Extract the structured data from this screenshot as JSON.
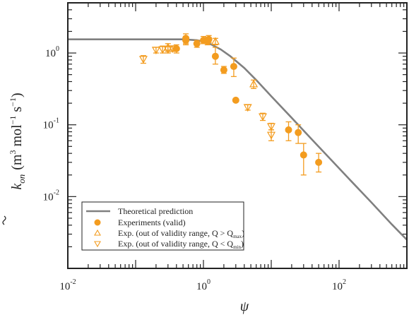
{
  "chart_data": {
    "type": "scatter",
    "xlabel": "ψ",
    "ylabel": {
      "prefix": "k",
      "subscript": "on",
      "units": "(m",
      "units_sup1": "3",
      "units_mid": " mol",
      "units_sup2": "−1",
      "units_mid2": " s",
      "units_sup3": "−1",
      "units_end": ")"
    },
    "xscale": "log",
    "yscale": "log",
    "xlim": [
      0.01,
      1000
    ],
    "ylim": [
      0.001,
      5
    ],
    "x_ticks": [
      {
        "value": 0.01,
        "base": "10",
        "exp": "-2"
      },
      {
        "value": 1,
        "base": "10",
        "exp": "0"
      },
      {
        "value": 100,
        "base": "10",
        "exp": "2"
      }
    ],
    "y_ticks": [
      {
        "value": 1,
        "base": "10",
        "exp": "0"
      },
      {
        "value": 0.1,
        "base": "10",
        "exp": "-1"
      },
      {
        "value": 0.01,
        "base": "10",
        "exp": "-2"
      }
    ],
    "grid": false,
    "legend_position": "bottom-left",
    "colors": {
      "theory": "#808080",
      "exp": "#f39c1f",
      "axis": "#222222"
    },
    "series": [
      {
        "name": "Theoretical prediction",
        "kind": "line",
        "x": [
          0.01,
          0.5,
          0.8,
          1.0,
          1.3,
          1.8,
          2.5,
          4,
          6,
          10,
          20,
          40,
          80,
          150,
          300,
          600,
          1000
        ],
        "y": [
          1.55,
          1.55,
          1.51,
          1.45,
          1.32,
          1.12,
          0.9,
          0.62,
          0.42,
          0.25,
          0.125,
          0.062,
          0.031,
          0.0165,
          0.0083,
          0.0041,
          0.0025
        ]
      },
      {
        "name": "Experiments (valid)",
        "kind": "circle",
        "x": [
          0.4,
          0.55,
          0.55,
          0.8,
          1.0,
          1.15,
          1.2,
          1.5,
          2.0,
          2.8,
          3.0,
          18,
          25,
          30,
          50
        ],
        "y": [
          1.15,
          1.6,
          1.5,
          1.35,
          1.5,
          1.45,
          1.55,
          0.9,
          0.58,
          0.65,
          0.22,
          0.085,
          0.078,
          0.038,
          0.03
        ],
        "err_low": [
          1.0,
          1.35,
          1.3,
          1.2,
          1.35,
          1.3,
          1.4,
          0.7,
          0.52,
          0.47,
          0.22,
          0.06,
          0.055,
          0.02,
          0.022
        ],
        "err_high": [
          1.3,
          1.85,
          1.7,
          1.5,
          1.7,
          1.65,
          1.75,
          1.2,
          0.65,
          0.85,
          0.22,
          0.11,
          0.1,
          0.055,
          0.04
        ]
      },
      {
        "name": "Exp. (out of validity range, Q > Q",
        "name_sub": "max",
        "name_end": ")",
        "kind": "triangle-up",
        "x": [
          0.3,
          1.5,
          5.5
        ],
        "y": [
          1.2,
          1.45,
          0.37
        ],
        "err_low": [
          1.05,
          1.3,
          0.32
        ],
        "err_high": [
          1.35,
          1.6,
          0.42
        ]
      },
      {
        "name": "Exp. (out of validity range, Q < Q",
        "name_sub": "min",
        "name_end": ")",
        "kind": "triangle-down",
        "x": [
          0.13,
          0.2,
          0.25,
          0.3,
          0.35,
          4.5,
          7.5,
          10,
          10
        ],
        "y": [
          0.82,
          1.1,
          1.12,
          1.12,
          1.15,
          0.175,
          0.13,
          0.095,
          0.072
        ],
        "err_low": [
          0.72,
          1.0,
          1.0,
          1.0,
          1.05,
          0.16,
          0.115,
          0.085,
          0.06
        ],
        "err_high": [
          0.92,
          1.2,
          1.25,
          1.25,
          1.25,
          0.19,
          0.145,
          0.105,
          0.085
        ]
      }
    ]
  }
}
